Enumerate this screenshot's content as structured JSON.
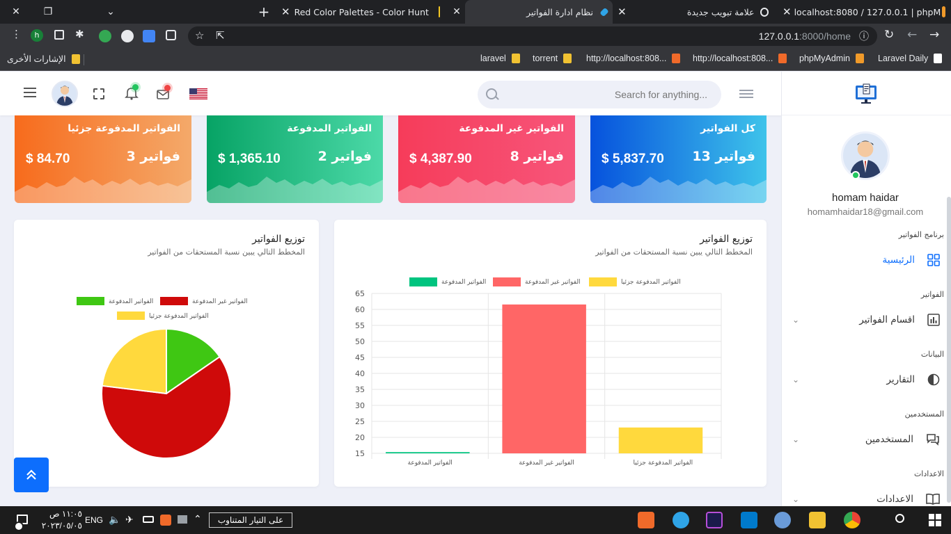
{
  "browser": {
    "tabs": [
      {
        "title": "Red Color Palettes - Color Hunt",
        "active": false
      },
      {
        "title": "نظام ادارة الفواتير",
        "active": true
      },
      {
        "title": "علامة تبويب جديدة",
        "active": false
      },
      {
        "title": "localhost:8080 / 127.0.0.1 | phpM",
        "active": false
      }
    ],
    "url_host": "127.0.0.1",
    "url_rest": ":8000/home",
    "bookmarks": [
      {
        "label": "laravel"
      },
      {
        "label": "torrent"
      },
      {
        "label": "http://localhost:808..."
      },
      {
        "label": "http://localhost:808..."
      },
      {
        "label": "phpMyAdmin"
      },
      {
        "label": "Laravel Daily"
      }
    ],
    "other_bookmarks": "الإشارات الأخرى",
    "profile_initial": "h"
  },
  "header": {
    "search_placeholder": "Search for anything..."
  },
  "sidebar": {
    "user_name": "homam haidar",
    "user_email": "homamhaidar18@gmail.com",
    "sections": [
      {
        "category": "برنامج الفواتير",
        "item": "الرئيسية",
        "active": true,
        "icon": "dashboard-grid-icon"
      },
      {
        "category": "الفواتير",
        "item": "اقسام الفواتير",
        "active": false,
        "icon": "bar-chart-icon"
      },
      {
        "category": "البيانات",
        "item": "التقارير",
        "active": false,
        "icon": "pie-chart-icon"
      },
      {
        "category": "المستخدمين",
        "item": "المستخدمين",
        "active": false,
        "icon": "chat-users-icon"
      },
      {
        "category": "الاعدادات",
        "item": "الاعدادات",
        "active": false,
        "icon": "book-icon"
      }
    ]
  },
  "cards": [
    {
      "title": "كل الفواتير",
      "count": "13 فواتير",
      "amount": "$ 5,837.70",
      "color1": "#0652dd",
      "color2": "#3ec3ea"
    },
    {
      "title": "الفواتير غير المدفوعة",
      "count": "8 فواتير",
      "amount": "$ 4,387.90",
      "color1": "#f63c5a",
      "color2": "#f7557a"
    },
    {
      "title": "الفواتير المدفوعة",
      "count": "2 فواتير",
      "amount": "$ 1,365.10",
      "color1": "#07a365",
      "color2": "#4cd9a8"
    },
    {
      "title": "الفواتير المدفوعة جزئيا",
      "count": "3 فواتير",
      "amount": "$ 84.70",
      "color1": "#f76b1c",
      "color2": "#f4a96a"
    }
  ],
  "bar_panel": {
    "title": "توزيع الفواتير",
    "subtitle": "المخطط التالي يبين نسبة المستحقات من الفواتير"
  },
  "pie_panel": {
    "title": "توزيع الفواتير",
    "subtitle": "المخطط التالي يبين نسبة المستحقات من الفواتير"
  },
  "chart_data": [
    {
      "type": "bar",
      "categories": [
        "الفواتير المدفوعة",
        "الفواتير غير المدفوعة",
        "الفواتير المدفوعة جزئيا"
      ],
      "series": [
        {
          "name": "الفواتير المدفوعة",
          "values": [
            15.38,
            null,
            null
          ],
          "color": "#00c47f"
        },
        {
          "name": "الفواتير غير المدفوعة",
          "values": [
            null,
            61.54,
            null
          ],
          "color": "#ff6666"
        },
        {
          "name": "الفواتير المدفوعة جزئيا",
          "values": [
            null,
            null,
            23.08
          ],
          "color": "#ffd93d"
        }
      ],
      "ylim": [
        15,
        65
      ],
      "yticks": [
        15,
        20,
        25,
        30,
        35,
        40,
        45,
        50,
        55,
        60,
        65
      ],
      "grid": true,
      "legend": "top"
    },
    {
      "type": "pie",
      "categories": [
        "الفواتير المدفوعة",
        "الفواتير غير المدفوعة",
        "الفواتير المدفوعة جزئيا"
      ],
      "values": [
        15.38,
        61.54,
        23.08
      ],
      "colors": [
        "#3fc713",
        "#cf0a0a",
        "#ffd93d"
      ],
      "legend": "top"
    }
  ],
  "taskbar": {
    "live_text": "على التيار المتناوب",
    "lang": "ENG",
    "time": "١١:٠٥ ص",
    "date": "٢٠٢٣/٠٥/٠٥"
  }
}
